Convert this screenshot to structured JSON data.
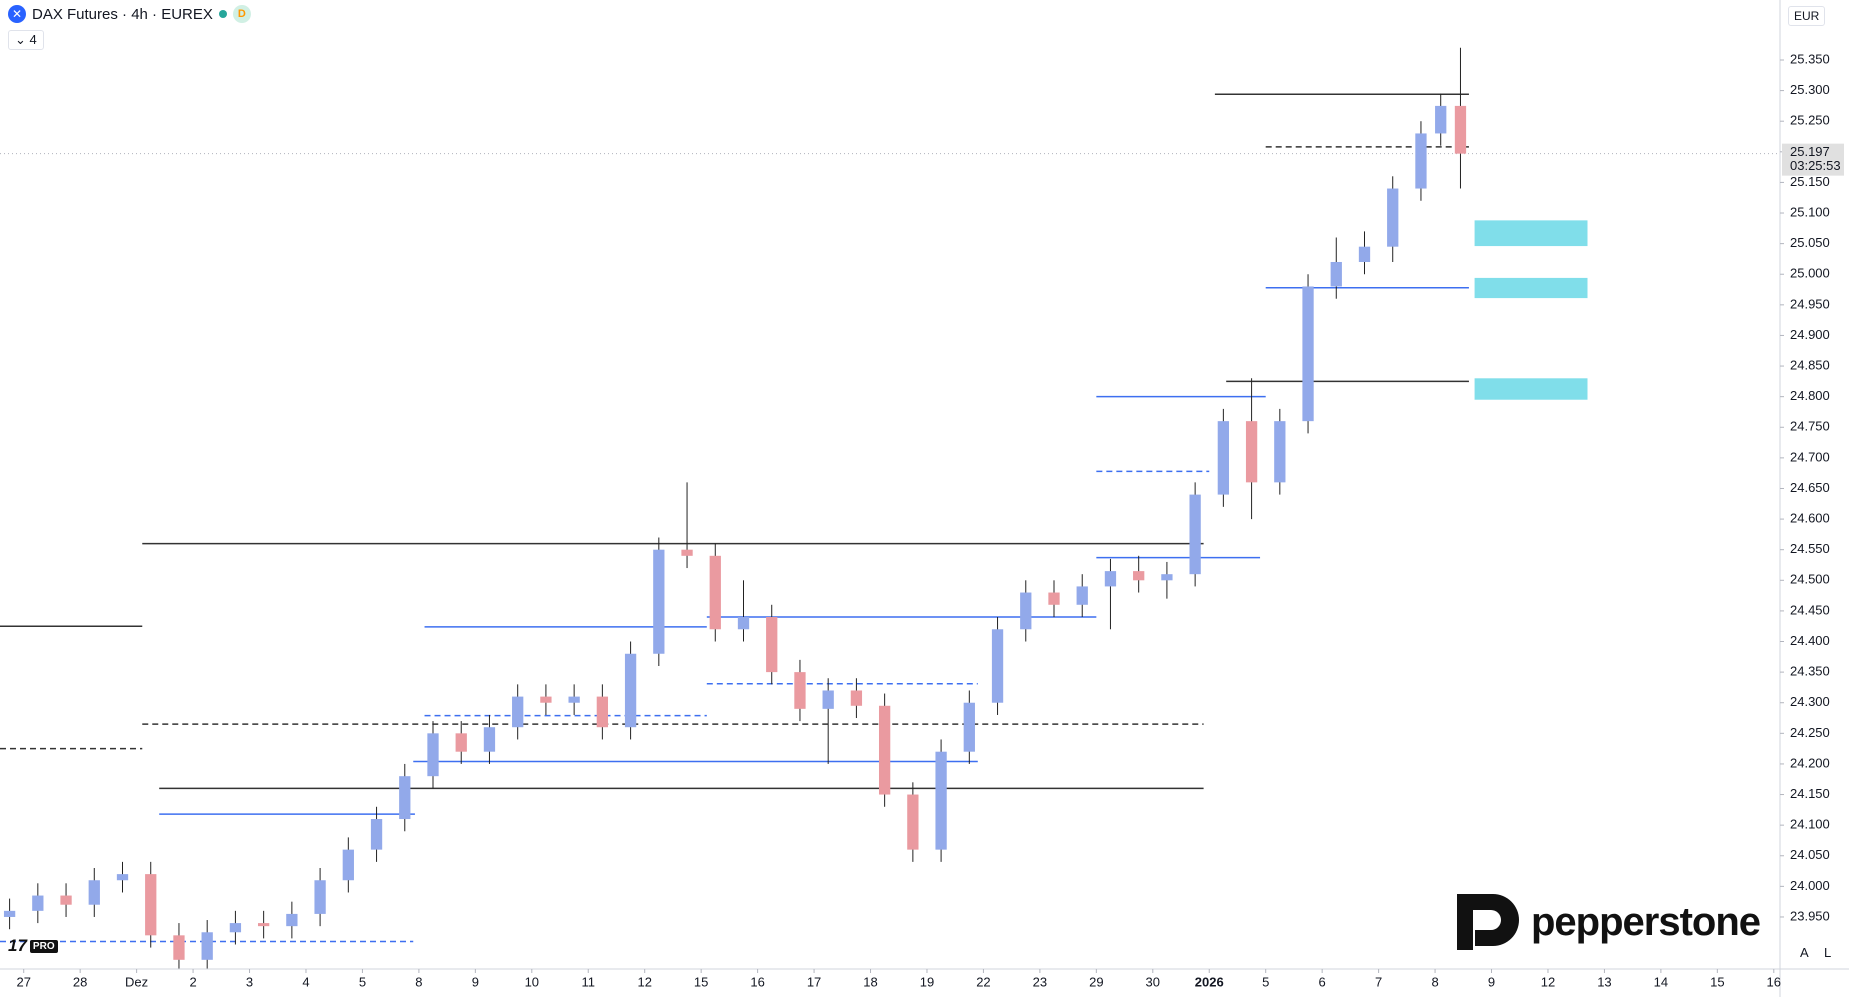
{
  "brand": "pepperstone",
  "plan": "PRO",
  "chart_data": {
    "type": "candlestick",
    "title": "DAX Futures · 4h · EUREX",
    "badge": "D",
    "indicator_count": "4",
    "currency": "EUR",
    "scale_buttons": [
      "A",
      "L"
    ],
    "up_color": "#92a9ea",
    "down_color": "#ea9aa0",
    "grid": false,
    "xlim": [
      -0.42,
      31.11
    ],
    "ylim": [
      23865,
      25448
    ],
    "xticks": [
      {
        "value": 0,
        "label": "27"
      },
      {
        "value": 1,
        "label": "28"
      },
      {
        "value": 2,
        "label": "Dez"
      },
      {
        "value": 3,
        "label": "2"
      },
      {
        "value": 4,
        "label": "3"
      },
      {
        "value": 5,
        "label": "4"
      },
      {
        "value": 6,
        "label": "5"
      },
      {
        "value": 7,
        "label": "8"
      },
      {
        "value": 8,
        "label": "9"
      },
      {
        "value": 9,
        "label": "10"
      },
      {
        "value": 10,
        "label": "11"
      },
      {
        "value": 11,
        "label": "12"
      },
      {
        "value": 12,
        "label": "15"
      },
      {
        "value": 13,
        "label": "16"
      },
      {
        "value": 14,
        "label": "17"
      },
      {
        "value": 15,
        "label": "18"
      },
      {
        "value": 16,
        "label": "19"
      },
      {
        "value": 17,
        "label": "22"
      },
      {
        "value": 18,
        "label": "23"
      },
      {
        "value": 19,
        "label": "29"
      },
      {
        "value": 20,
        "label": "30"
      },
      {
        "value": 21,
        "label": "2026"
      },
      {
        "value": 22,
        "label": "5"
      },
      {
        "value": 23,
        "label": "6"
      },
      {
        "value": 24,
        "label": "7"
      },
      {
        "value": 25,
        "label": "8"
      },
      {
        "value": 26,
        "label": "9"
      },
      {
        "value": 27,
        "label": "12"
      },
      {
        "value": 28,
        "label": "13"
      },
      {
        "value": 29,
        "label": "14"
      },
      {
        "value": 30,
        "label": "15"
      },
      {
        "value": 31,
        "label": "16"
      }
    ],
    "yticks": [
      {
        "value": 23950,
        "label": "23.950"
      },
      {
        "value": 24000,
        "label": "24.000"
      },
      {
        "value": 24050,
        "label": "24.050"
      },
      {
        "value": 24100,
        "label": "24.100"
      },
      {
        "value": 24150,
        "label": "24.150"
      },
      {
        "value": 24200,
        "label": "24.200"
      },
      {
        "value": 24250,
        "label": "24.250"
      },
      {
        "value": 24300,
        "label": "24.300"
      },
      {
        "value": 24350,
        "label": "24.350"
      },
      {
        "value": 24400,
        "label": "24.400"
      },
      {
        "value": 24450,
        "label": "24.450"
      },
      {
        "value": 24500,
        "label": "24.500"
      },
      {
        "value": 24550,
        "label": "24.550"
      },
      {
        "value": 24600,
        "label": "24.600"
      },
      {
        "value": 24650,
        "label": "24.650"
      },
      {
        "value": 24700,
        "label": "24.700"
      },
      {
        "value": 24750,
        "label": "24.750"
      },
      {
        "value": 24800,
        "label": "24.800"
      },
      {
        "value": 24850,
        "label": "24.850"
      },
      {
        "value": 24900,
        "label": "24.900"
      },
      {
        "value": 24950,
        "label": "24.950"
      },
      {
        "value": 25000,
        "label": "25.000"
      },
      {
        "value": 25050,
        "label": "25.050"
      },
      {
        "value": 25100,
        "label": "25.100"
      },
      {
        "value": 25150,
        "label": "25.150"
      },
      {
        "value": 25200,
        "label": "25.200"
      },
      {
        "value": 25250,
        "label": "25.250"
      },
      {
        "value": 25300,
        "label": "25.300"
      },
      {
        "value": 25350,
        "label": "25.350"
      }
    ],
    "x": [
      -0.25,
      0.25,
      0.75,
      1.25,
      1.75,
      2.25,
      2.75,
      3.25,
      3.75,
      4.25,
      4.75,
      5.25,
      5.75,
      6.25,
      6.75,
      7.25,
      7.75,
      8.25,
      8.75,
      9.25,
      9.75,
      10.25,
      10.75,
      11.25,
      11.75,
      12.25,
      12.75,
      13.25,
      13.75,
      14.25,
      14.75,
      15.25,
      15.75,
      16.25,
      16.75,
      17.25,
      17.75,
      18.25,
      18.75,
      19.25,
      19.75,
      20.25,
      20.75,
      21.25,
      21.75,
      22.25,
      22.75,
      23.25,
      23.75,
      24.25,
      24.75,
      25.1,
      25.45
    ],
    "open": [
      23950,
      23960,
      23985,
      23970,
      24010,
      24020,
      23920,
      23880,
      23925,
      23940,
      23935,
      23955,
      24010,
      24060,
      24110,
      24180,
      24250,
      24220,
      24260,
      24310,
      24300,
      24310,
      24260,
      24380,
      24550,
      24540,
      24420,
      24440,
      24350,
      24290,
      24320,
      24295,
      24150,
      24060,
      24220,
      24300,
      24420,
      24480,
      24460,
      24490,
      24515,
      24500,
      24510,
      24640,
      24760,
      24660,
      24760,
      24980,
      25020,
      25045,
      25140,
      25230,
      25275
    ],
    "high": [
      23980,
      24005,
      24005,
      24030,
      24040,
      24040,
      23940,
      23945,
      23960,
      23960,
      23975,
      24030,
      24080,
      24130,
      24200,
      24270,
      24270,
      24280,
      24330,
      24330,
      24330,
      24330,
      24400,
      24570,
      24660,
      24560,
      24500,
      24460,
      24370,
      24340,
      24340,
      24315,
      24170,
      24240,
      24320,
      24440,
      24500,
      24500,
      24510,
      24535,
      24540,
      24530,
      24660,
      24780,
      24830,
      24780,
      25000,
      25060,
      25070,
      25160,
      25250,
      25295,
      25370
    ],
    "low": [
      23930,
      23940,
      23950,
      23950,
      23990,
      23900,
      23860,
      23860,
      23905,
      23915,
      23915,
      23935,
      23990,
      24040,
      24090,
      24160,
      24200,
      24200,
      24240,
      24280,
      24280,
      24240,
      24240,
      24360,
      24520,
      24400,
      24400,
      24330,
      24270,
      24200,
      24275,
      24130,
      24040,
      24040,
      24200,
      24280,
      24400,
      24440,
      24440,
      24420,
      24480,
      24470,
      24490,
      24620,
      24600,
      24640,
      24740,
      24960,
      25000,
      25020,
      25120,
      25210,
      25140
    ],
    "close": [
      23960,
      23985,
      23970,
      24010,
      24020,
      23920,
      23880,
      23925,
      23940,
      23935,
      23955,
      24010,
      24060,
      24110,
      24180,
      24250,
      24220,
      24260,
      24310,
      24300,
      24310,
      24260,
      24380,
      24550,
      24540,
      24420,
      24440,
      24350,
      24290,
      24320,
      24295,
      24150,
      24060,
      24220,
      24300,
      24420,
      24480,
      24460,
      24490,
      24515,
      24500,
      24510,
      24640,
      24760,
      24660,
      24760,
      24980,
      25020,
      25045,
      25140,
      25230,
      25275,
      25197
    ],
    "levels": [
      {
        "value": 24425,
        "start": -0.42,
        "end": 2.1,
        "color": "#333333",
        "dashed": false
      },
      {
        "value": 24225,
        "start": -0.42,
        "end": 2.1,
        "color": "#333333",
        "dashed": true
      },
      {
        "value": 23910,
        "start": -0.42,
        "end": 6.9,
        "color": "#3d6ff0",
        "dashed": true
      },
      {
        "value": 24560,
        "start": 2.1,
        "end": 20.9,
        "color": "#333333",
        "dashed": false
      },
      {
        "value": 24265,
        "start": 2.1,
        "end": 20.9,
        "color": "#333333",
        "dashed": true
      },
      {
        "value": 24160,
        "start": 2.4,
        "end": 20.9,
        "color": "#333333",
        "dashed": false
      },
      {
        "value": 24118,
        "start": 2.4,
        "end": 6.93,
        "color": "#3d6ff0",
        "dashed": false
      },
      {
        "value": 24424,
        "start": 7.1,
        "end": 12.1,
        "color": "#3d6ff0",
        "dashed": false
      },
      {
        "value": 24279,
        "start": 7.1,
        "end": 12.1,
        "color": "#3d6ff0",
        "dashed": true
      },
      {
        "value": 24204,
        "start": 6.9,
        "end": 16.9,
        "color": "#3d6ff0",
        "dashed": false
      },
      {
        "value": 24440,
        "start": 12.1,
        "end": 19.0,
        "color": "#3d6ff0",
        "dashed": false
      },
      {
        "value": 24331,
        "start": 12.1,
        "end": 16.9,
        "color": "#3d6ff0",
        "dashed": true
      },
      {
        "value": 24800,
        "start": 19.0,
        "end": 22.0,
        "color": "#3d6ff0",
        "dashed": false
      },
      {
        "value": 24537,
        "start": 19.0,
        "end": 21.9,
        "color": "#3d6ff0",
        "dashed": false
      },
      {
        "value": 24678,
        "start": 19.0,
        "end": 21.0,
        "color": "#3d6ff0",
        "dashed": true
      },
      {
        "value": 24825,
        "start": 21.3,
        "end": 25.6,
        "color": "#333333",
        "dashed": false
      },
      {
        "value": 24978,
        "start": 22.0,
        "end": 25.6,
        "color": "#3d6ff0",
        "dashed": false
      },
      {
        "value": 25294,
        "start": 21.1,
        "end": 25.6,
        "color": "#333333",
        "dashed": false
      },
      {
        "value": 25208,
        "start": 22.0,
        "end": 25.6,
        "color": "#333333",
        "dashed": true
      }
    ],
    "zones": [
      {
        "low": 25046,
        "high": 25088,
        "start": 25.7,
        "end": 27.7,
        "color": "#80deea"
      },
      {
        "low": 24961,
        "high": 24994,
        "start": 25.7,
        "end": 27.7,
        "color": "#80deea"
      },
      {
        "low": 24795,
        "high": 24830,
        "start": 25.7,
        "end": 27.7,
        "color": "#80deea"
      }
    ],
    "last_price": {
      "value": 25197,
      "label": "25.197"
    },
    "countdown": "03:25:53"
  }
}
